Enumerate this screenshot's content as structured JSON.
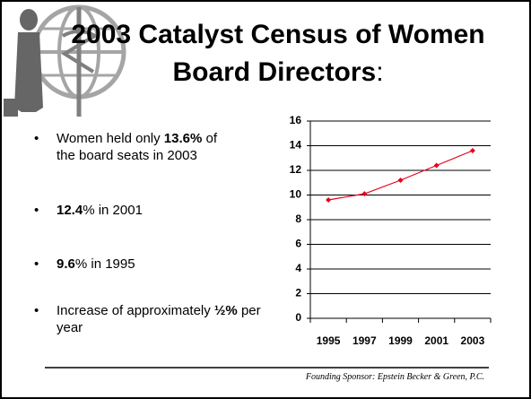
{
  "slide": {
    "title": {
      "line1": "2003 Catalyst Census of  Women",
      "line2": "Board Directors",
      "colon": ":"
    },
    "bullets": [
      {
        "before": "Women held only ",
        "bold": "13.6%",
        "after": " of the board seats in 2003"
      },
      {
        "before": "",
        "bold": "12.4",
        "after": "% in 2001"
      },
      {
        "before": "",
        "bold": "9.6",
        "after": "% in 1995"
      },
      {
        "before": "Increase of approximately ",
        "bold": "½%",
        "after": " per year"
      }
    ],
    "footer": "Founding Sponsor:  Epstein Becker & Green, P.C."
  },
  "chart_data": {
    "type": "line",
    "categories": [
      "1995",
      "1997",
      "1999",
      "2001",
      "2003"
    ],
    "series": [
      {
        "color": "#e8001c",
        "values": [
          9.6,
          10.1,
          11.2,
          12.4,
          13.6
        ]
      }
    ],
    "ylim": [
      0,
      16
    ],
    "yticks": [
      0,
      2,
      4,
      6,
      8,
      10,
      12,
      14,
      16
    ],
    "grid": true
  }
}
